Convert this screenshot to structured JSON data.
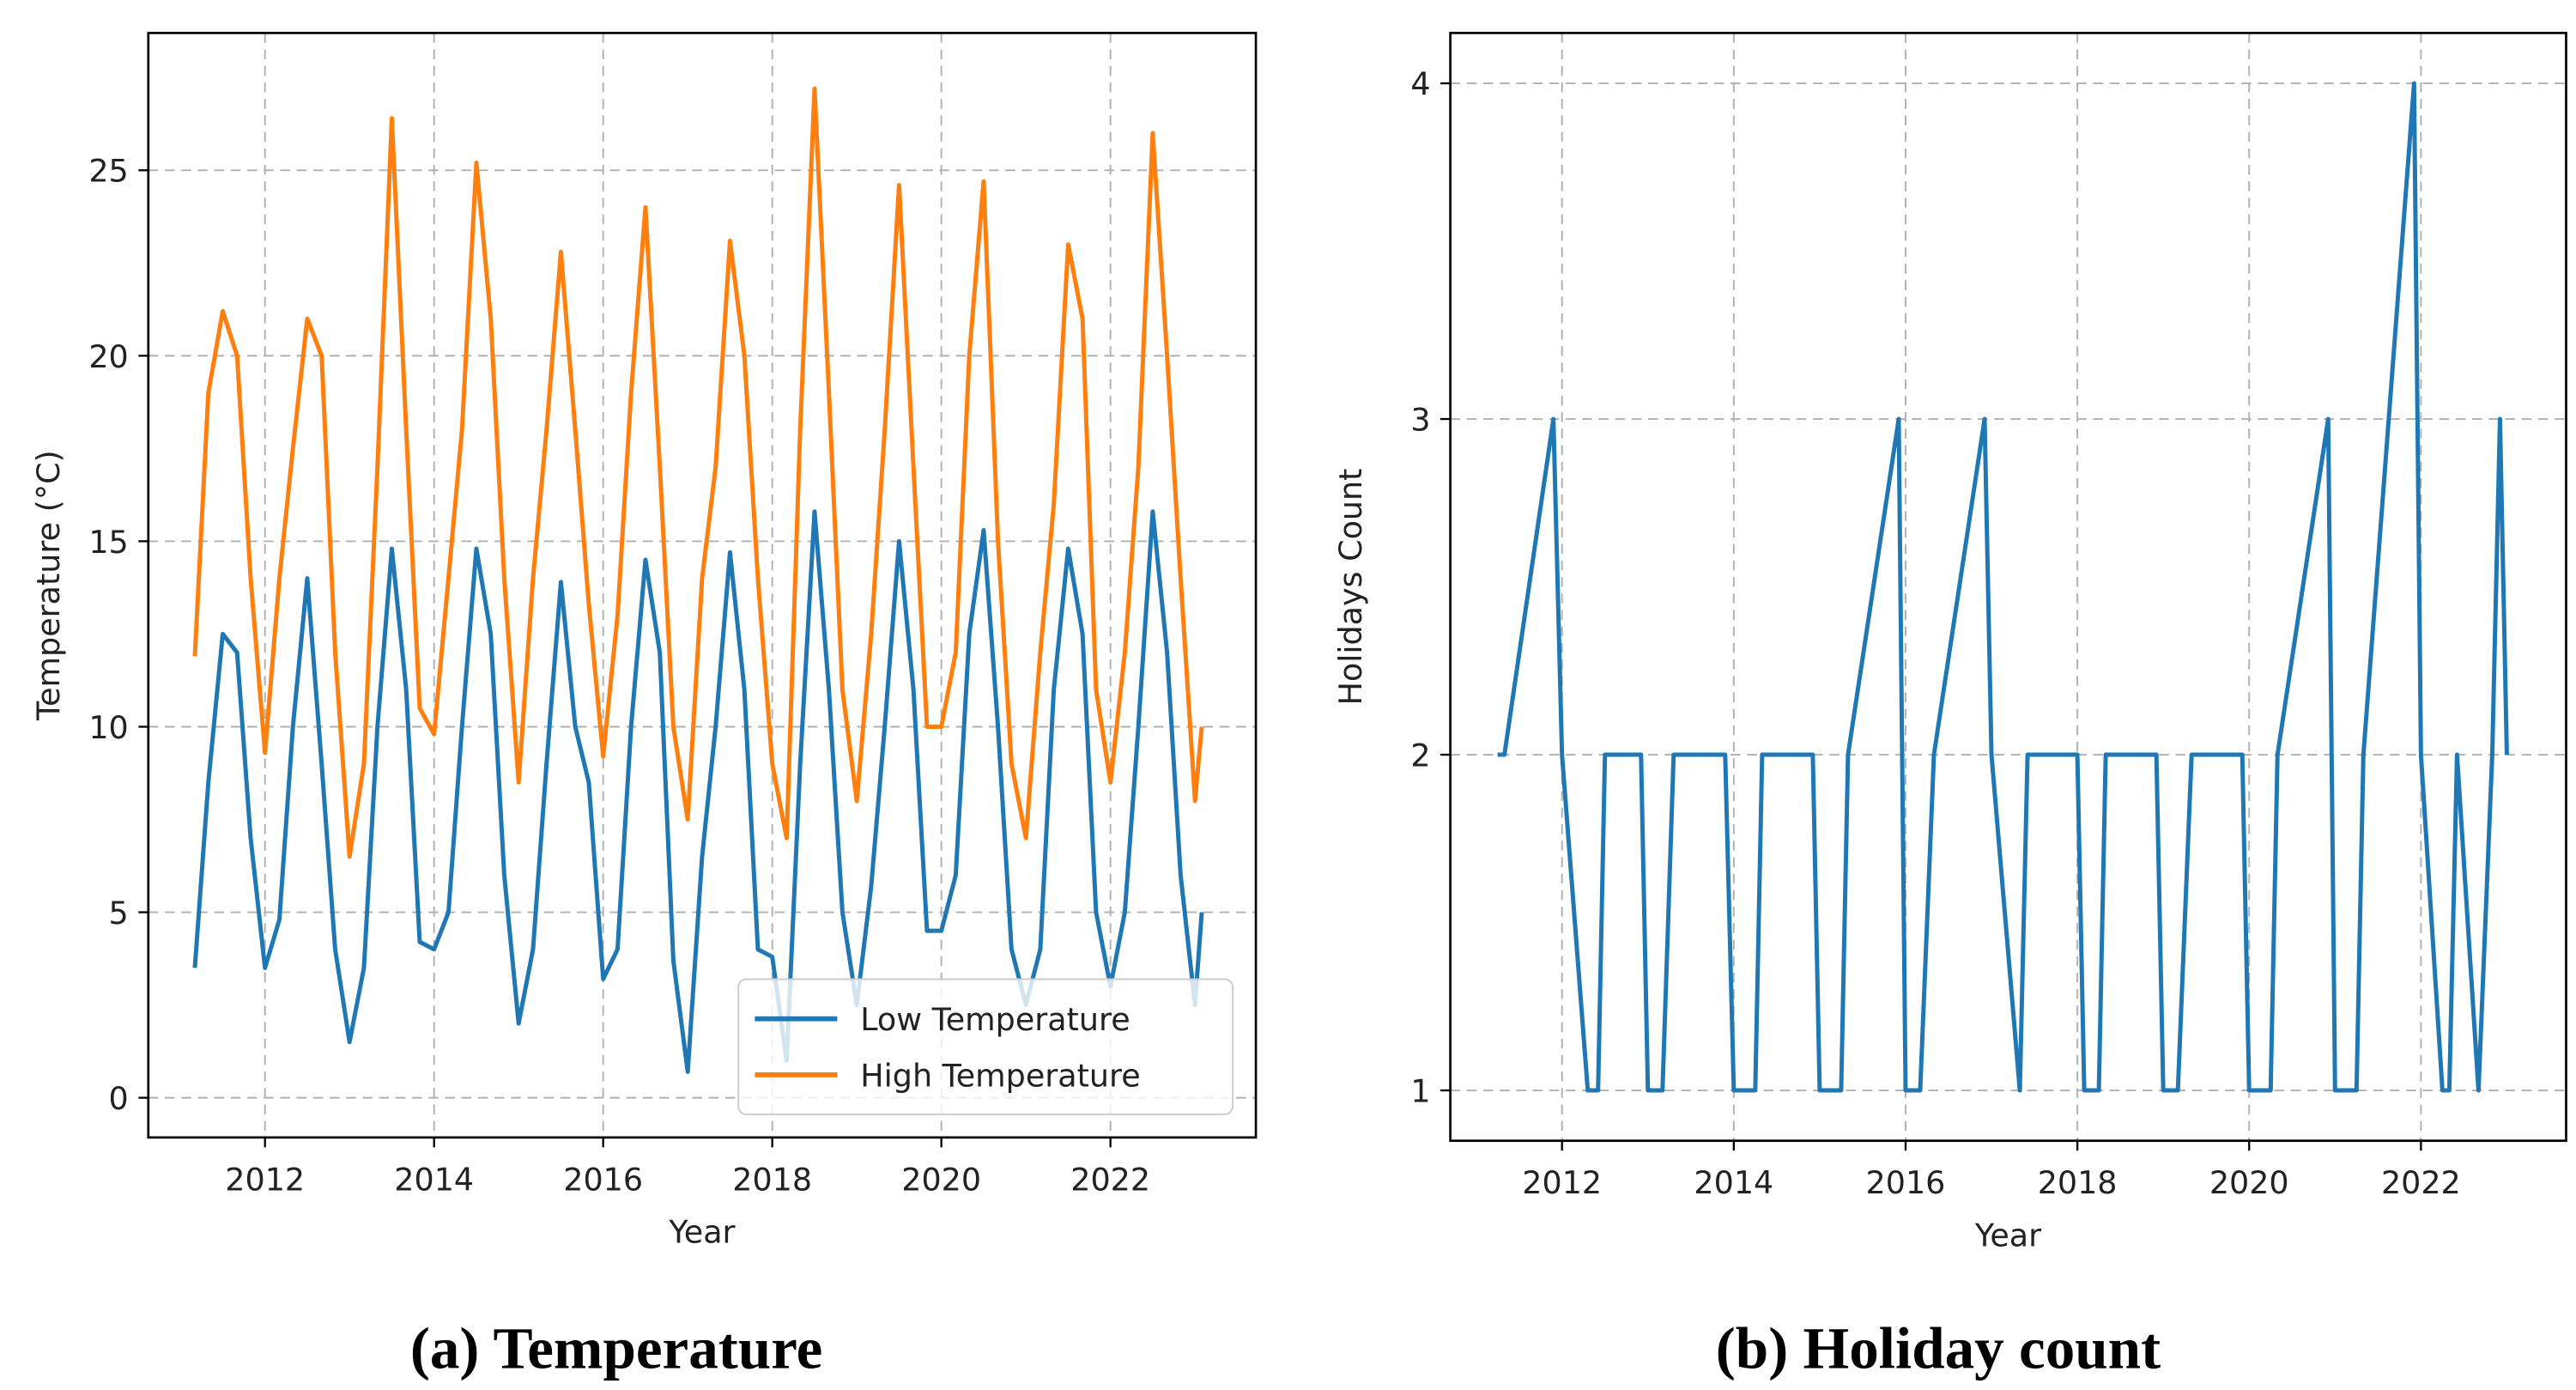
{
  "chart_data": [
    {
      "type": "line",
      "caption": "(a) Temperature",
      "xlabel": "Year",
      "ylabel": "Temperature (°C)",
      "x": [
        2011.17,
        2011.33,
        2011.5,
        2011.67,
        2011.83,
        2012.0,
        2012.17,
        2012.33,
        2012.5,
        2012.67,
        2012.83,
        2013.0,
        2013.17,
        2013.33,
        2013.5,
        2013.67,
        2013.83,
        2014.0,
        2014.17,
        2014.33,
        2014.5,
        2014.67,
        2014.83,
        2015.0,
        2015.17,
        2015.33,
        2015.5,
        2015.67,
        2015.83,
        2016.0,
        2016.17,
        2016.33,
        2016.5,
        2016.67,
        2016.83,
        2017.0,
        2017.17,
        2017.33,
        2017.5,
        2017.67,
        2017.83,
        2018.0,
        2018.17,
        2018.33,
        2018.5,
        2018.67,
        2018.83,
        2019.0,
        2019.17,
        2019.33,
        2019.5,
        2019.67,
        2019.83,
        2020.0,
        2020.17,
        2020.33,
        2020.5,
        2020.67,
        2020.83,
        2021.0,
        2021.17,
        2021.33,
        2021.5,
        2021.67,
        2021.83,
        2022.0,
        2022.17,
        2022.33,
        2022.5,
        2022.67,
        2022.83,
        2023.0,
        2023.08
      ],
      "series": [
        {
          "name": "Low Temperature",
          "color": "#1f77b4",
          "values": [
            3.5,
            8.5,
            12.5,
            12,
            7,
            3.5,
            4.8,
            10,
            14,
            9,
            4,
            1.5,
            3.5,
            10,
            14.8,
            11,
            4.2,
            4,
            5,
            10,
            14.8,
            12.5,
            6,
            2,
            4,
            9,
            13.9,
            10,
            8.5,
            3.2,
            4,
            10,
            14.5,
            12,
            3.7,
            0.7,
            6.5,
            10,
            14.7,
            11,
            4,
            3.8,
            1,
            9,
            15.8,
            11,
            5,
            2.5,
            5.7,
            10,
            15,
            11,
            4.5,
            4.5,
            6,
            12.5,
            15.3,
            10,
            4,
            2.5,
            4,
            11,
            14.8,
            12.5,
            5,
            3,
            5,
            10,
            15.8,
            12,
            6,
            2.5,
            5
          ]
        },
        {
          "name": "High Temperature",
          "color": "#ff7f0e",
          "values": [
            11.9,
            19,
            21.2,
            20,
            14,
            9.3,
            14,
            17.5,
            21,
            20,
            12,
            6.5,
            9,
            17,
            26.4,
            18,
            10.5,
            9.8,
            14,
            18,
            25.2,
            21,
            14,
            8.5,
            14,
            18,
            22.8,
            18,
            13.3,
            9.2,
            13,
            19,
            24,
            17,
            10,
            7.5,
            14,
            17,
            23.1,
            20,
            14,
            9,
            7,
            18,
            27.2,
            19,
            11,
            8,
            12.5,
            18,
            24.6,
            17,
            10,
            10,
            12,
            20,
            24.7,
            15,
            9,
            7,
            12,
            16,
            23,
            21,
            11,
            8.5,
            12,
            17,
            26,
            20,
            14,
            8,
            10
          ]
        }
      ],
      "xlim": [
        2010.62,
        2023.72
      ],
      "xticks": [
        2012,
        2014,
        2016,
        2018,
        2020,
        2022
      ],
      "ylim": [
        -1.07,
        28.7
      ],
      "yticks": [
        0,
        5,
        10,
        15,
        20,
        25
      ],
      "grid": true,
      "legend": "lower right"
    },
    {
      "type": "line",
      "caption": "(b) Holiday count",
      "xlabel": "Year",
      "ylabel": "Holidays Count",
      "x": [
        2011.25,
        2011.33,
        2011.9,
        2012.0,
        2012.3,
        2012.42,
        2012.5,
        2012.92,
        2013.0,
        2013.17,
        2013.3,
        2013.9,
        2014.0,
        2014.25,
        2014.33,
        2014.92,
        2015.0,
        2015.25,
        2015.33,
        2015.92,
        2016.0,
        2016.17,
        2016.33,
        2016.92,
        2017.0,
        2017.33,
        2017.42,
        2018.0,
        2018.08,
        2018.25,
        2018.33,
        2018.92,
        2019.0,
        2019.17,
        2019.33,
        2019.92,
        2020.0,
        2020.25,
        2020.33,
        2020.92,
        2021.0,
        2021.25,
        2021.33,
        2021.92,
        2022.0,
        2022.25,
        2022.33,
        2022.42,
        2022.67,
        2022.83,
        2022.92,
        2023.0
      ],
      "series": [
        {
          "color": "#1f77b4",
          "values": [
            2,
            2,
            3,
            2,
            1,
            1,
            2,
            2,
            1,
            1,
            2,
            2,
            1,
            1,
            2,
            2,
            1,
            1,
            2,
            3,
            1,
            1,
            2,
            3,
            2,
            1,
            2,
            2,
            1,
            1,
            2,
            2,
            1,
            1,
            2,
            2,
            1,
            1,
            2,
            3,
            1,
            1,
            2,
            4,
            2,
            1,
            1,
            2,
            1,
            2,
            3,
            2
          ]
        }
      ],
      "xlim": [
        2010.7,
        2023.69
      ],
      "xticks": [
        2012,
        2014,
        2016,
        2018,
        2020,
        2022
      ],
      "ylim": [
        0.85,
        4.15
      ],
      "yticks": [
        1,
        2,
        3,
        4
      ],
      "grid": true
    }
  ]
}
